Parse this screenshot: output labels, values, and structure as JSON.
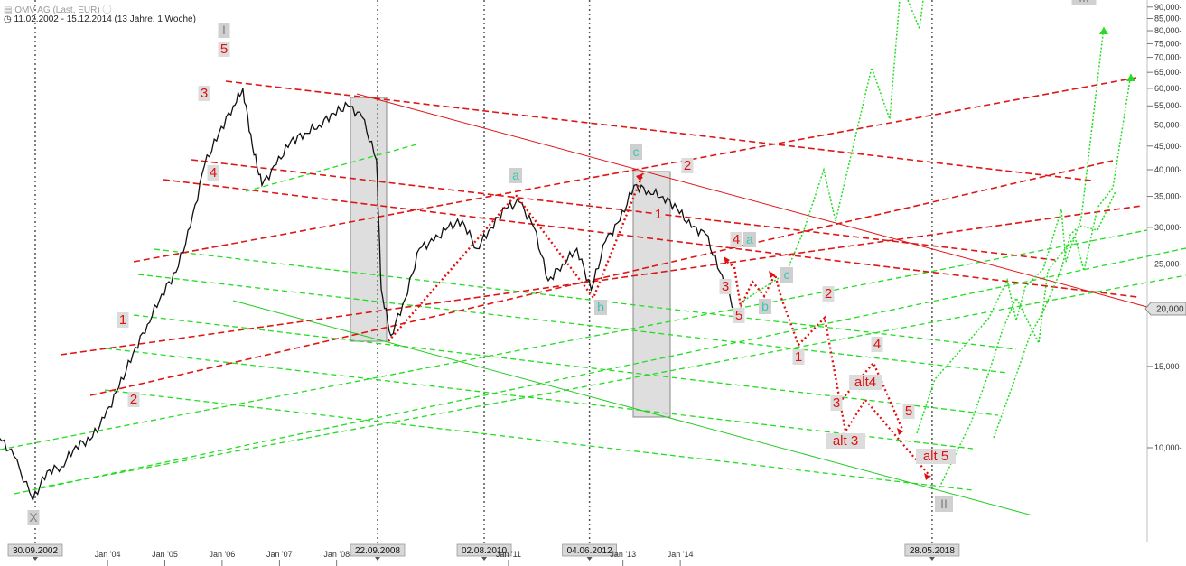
{
  "header": {
    "title": "OMV AG (Last, EUR)",
    "range": "11.02.2002 - 15.12.2014 (13 Jahre, 1 Woche)"
  },
  "chart_data": {
    "type": "line",
    "title": "OMV AG (Last, EUR)",
    "subtitle": "11.02.2002 - 15.12.2014 (13 Jahre, 1 Woche)",
    "y_scale": "log",
    "ylim": [
      6500,
      90000
    ],
    "y_ticks": [
      10000,
      15000,
      20000,
      25000,
      30000,
      35000,
      40000,
      45000,
      50000,
      55000,
      60000,
      65000,
      70000,
      75000,
      80000,
      85000,
      90000
    ],
    "y_tick_labels": [
      "10,000-",
      "15,000-",
      "20,000",
      "25,000-",
      "30,000-",
      "35,000-",
      "40,000-",
      "45,000-",
      "50,000-",
      "55,000-",
      "60,000-",
      "65,000-",
      "70,000-",
      "75,000-",
      "80,000-",
      "85,000-",
      "90,000-"
    ],
    "current_value_label": "20,000",
    "x_tick_labels": [
      "Jan '04",
      "Jan '05",
      "Jan '06",
      "Jan '07",
      "Jan '08",
      "Jan '11",
      "Jan '13",
      "Jan '14"
    ],
    "vertical_markers": [
      {
        "date": "30.09.2002",
        "label": "30.09.2002"
      },
      {
        "date": "22.09.2008",
        "label": "22.09.2008"
      },
      {
        "date": "02.08.2010",
        "label": "02.08.2010"
      },
      {
        "date": "04.06.2012",
        "label": "04.06.2012"
      },
      {
        "date": "28.05.2018",
        "label": "28.05.2018"
      }
    ],
    "price_series": {
      "name": "",
      "points": [
        [
          "2002-02",
          10500
        ],
        [
          "2002-05",
          9600
        ],
        [
          "2002-09",
          7700
        ],
        [
          "2002-12",
          8900
        ],
        [
          "2003-03",
          9100
        ],
        [
          "2003-06",
          10100
        ],
        [
          "2003-09",
          10400
        ],
        [
          "2003-12",
          11600
        ],
        [
          "2004-03",
          13500
        ],
        [
          "2004-06",
          16000
        ],
        [
          "2004-09",
          18500
        ],
        [
          "2004-12",
          21500
        ],
        [
          "2005-03",
          24000
        ],
        [
          "2005-06",
          30000
        ],
        [
          "2005-09",
          41000
        ],
        [
          "2005-12",
          48000
        ],
        [
          "2006-03",
          55000
        ],
        [
          "2006-05",
          60000
        ],
        [
          "2006-07",
          45000
        ],
        [
          "2006-09",
          37000
        ],
        [
          "2006-12",
          41000
        ],
        [
          "2007-03",
          46000
        ],
        [
          "2007-06",
          48000
        ],
        [
          "2007-09",
          50000
        ],
        [
          "2007-12",
          53000
        ],
        [
          "2008-03",
          55000
        ],
        [
          "2008-06",
          52000
        ],
        [
          "2008-09",
          42000
        ],
        [
          "2008-10",
          22000
        ],
        [
          "2008-12",
          17500
        ],
        [
          "2009-03",
          21000
        ],
        [
          "2009-06",
          27000
        ],
        [
          "2009-09",
          28000
        ],
        [
          "2009-12",
          30000
        ],
        [
          "2010-03",
          31000
        ],
        [
          "2010-06",
          27000
        ],
        [
          "2010-09",
          30000
        ],
        [
          "2010-12",
          33000
        ],
        [
          "2011-03",
          34000
        ],
        [
          "2011-06",
          30000
        ],
        [
          "2011-09",
          23000
        ],
        [
          "2011-12",
          25000
        ],
        [
          "2012-03",
          27000
        ],
        [
          "2012-06",
          22000
        ],
        [
          "2012-09",
          28000
        ],
        [
          "2012-12",
          31000
        ],
        [
          "2013-03",
          37000
        ],
        [
          "2013-06",
          36000
        ],
        [
          "2013-09",
          35000
        ],
        [
          "2013-12",
          33000
        ],
        [
          "2014-03",
          30000
        ],
        [
          "2014-06",
          29000
        ],
        [
          "2014-09",
          24000
        ],
        [
          "2014-12",
          20000
        ]
      ]
    },
    "wave_labels": {
      "red": [
        "5",
        "3",
        "4",
        "1",
        "2",
        "a",
        "b",
        "c",
        "1",
        "2",
        "3",
        "4",
        "5",
        "1",
        "2",
        "3",
        "4",
        "5",
        "alt4",
        "alt 3",
        "alt 5"
      ],
      "cyan": [
        "a",
        "b",
        "c",
        "a",
        "b",
        "c"
      ],
      "grey": [
        "I",
        "II",
        "III",
        "X"
      ]
    }
  }
}
